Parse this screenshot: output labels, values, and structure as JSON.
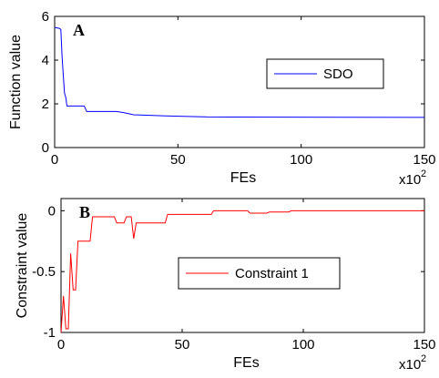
{
  "chart_data": [
    {
      "type": "line",
      "panel_label": "A",
      "x_label": "FEs",
      "y_label": "Function value",
      "x_multiplier": "x10",
      "x_multiplier_exp": "2",
      "xlim": [
        0,
        150
      ],
      "xticks": [
        0,
        50,
        100,
        150
      ],
      "ylim": [
        0,
        6
      ],
      "yticks": [
        0,
        2,
        4,
        6
      ],
      "legend": "middle-right",
      "series": [
        {
          "name": "SDO",
          "color": "#0000ff",
          "x": [
            0,
            2,
            2.5,
            3,
            3.5,
            4,
            4.5,
            5,
            12,
            13,
            25,
            28,
            32,
            45,
            62,
            150
          ],
          "values": [
            5.5,
            5.45,
            5.4,
            4.2,
            3.3,
            2.5,
            2.3,
            1.9,
            1.9,
            1.65,
            1.65,
            1.6,
            1.5,
            1.45,
            1.4,
            1.38
          ]
        }
      ]
    },
    {
      "type": "line",
      "panel_label": "B",
      "x_label": "FEs",
      "y_label": "Constraint value",
      "x_multiplier": "x10",
      "x_multiplier_exp": "2",
      "xlim": [
        0,
        150
      ],
      "xticks": [
        0,
        50,
        100,
        150
      ],
      "ylim": [
        -1,
        0.1
      ],
      "yticks": [
        0,
        -0.5,
        -1
      ],
      "legend": "middle-right",
      "series": [
        {
          "name": "Constraint 1",
          "color": "#ff0000",
          "x": [
            0,
            1,
            2,
            3,
            4,
            5,
            6,
            7,
            12,
            13,
            22,
            23,
            26,
            27,
            29,
            30,
            31,
            43,
            44,
            62,
            63,
            77,
            78,
            85,
            86,
            94,
            95,
            150
          ],
          "values": [
            -1,
            -0.7,
            -0.97,
            -0.97,
            -0.35,
            -0.65,
            -0.65,
            -0.25,
            -0.25,
            -0.05,
            -0.05,
            -0.1,
            -0.1,
            -0.05,
            -0.05,
            -0.23,
            -0.1,
            -0.1,
            -0.03,
            -0.03,
            0,
            0,
            -0.02,
            -0.02,
            -0.01,
            -0.01,
            0,
            0
          ]
        }
      ]
    }
  ]
}
